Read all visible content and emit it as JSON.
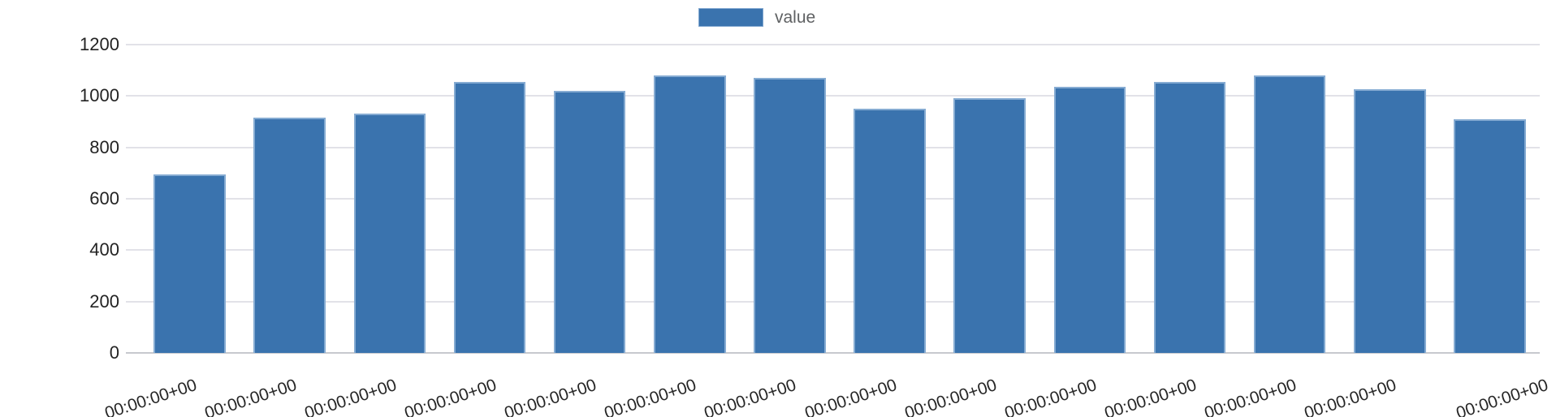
{
  "chart_data": {
    "type": "bar",
    "title": "",
    "xlabel": "",
    "ylabel": "",
    "ylim": [
      0,
      1200
    ],
    "yticks": [
      0,
      200,
      400,
      600,
      800,
      1000,
      1200
    ],
    "grid": true,
    "legend_position": "top-center",
    "categories": [
      "00:00:00+00",
      "00:00:00+00",
      "00:00:00+00",
      "00:00:00+00",
      "00:00:00+00",
      "00:00:00+00",
      "00:00:00+00",
      "00:00:00+00",
      "00:00:00+00",
      "00:00:00+00",
      "00:00:00+00",
      "00:00:00+00",
      "00:00:00+00",
      "00:00:00+00"
    ],
    "series": [
      {
        "name": "value",
        "color": "#3a73ae",
        "values": [
          695,
          915,
          930,
          1055,
          1020,
          1080,
          1070,
          950,
          990,
          1035,
          1055,
          1080,
          1025,
          910
        ]
      }
    ]
  },
  "colors": {
    "bar_fill": "#3a73ae",
    "bar_border": "#85abd2",
    "gridline": "#e2e2e8",
    "zero_line": "#c7c9ce",
    "axis_text": "#232323",
    "legend_text": "#5f6163",
    "background": "#ffffff"
  }
}
